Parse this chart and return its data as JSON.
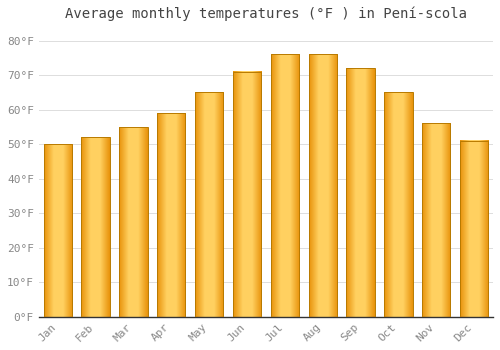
{
  "months": [
    "Jan",
    "Feb",
    "Mar",
    "Apr",
    "May",
    "Jun",
    "Jul",
    "Aug",
    "Sep",
    "Oct",
    "Nov",
    "Dec"
  ],
  "values": [
    50,
    52,
    55,
    59,
    65,
    71,
    76,
    76,
    72,
    65,
    56,
    51
  ],
  "bar_color_left": "#F5A623",
  "bar_color_right": "#FFD060",
  "bar_color_main": "#FFB830",
  "bar_edge_color": "#C8860A",
  "background_color": "#FFFFFF",
  "grid_color": "#DDDDDD",
  "title": "Average monthly temperatures (°F ) in Pení­scola",
  "title_fontsize": 10,
  "title_color": "#444444",
  "tick_label_color": "#888888",
  "tick_fontsize": 8,
  "ytick_values": [
    0,
    10,
    20,
    30,
    40,
    50,
    60,
    70,
    80
  ],
  "ytick_labels": [
    "0°F",
    "10°F",
    "20°F",
    "30°F",
    "40°F",
    "50°F",
    "60°F",
    "70°F",
    "80°F"
  ],
  "ylim": [
    0,
    84
  ],
  "figsize": [
    5.0,
    3.5
  ],
  "dpi": 100
}
